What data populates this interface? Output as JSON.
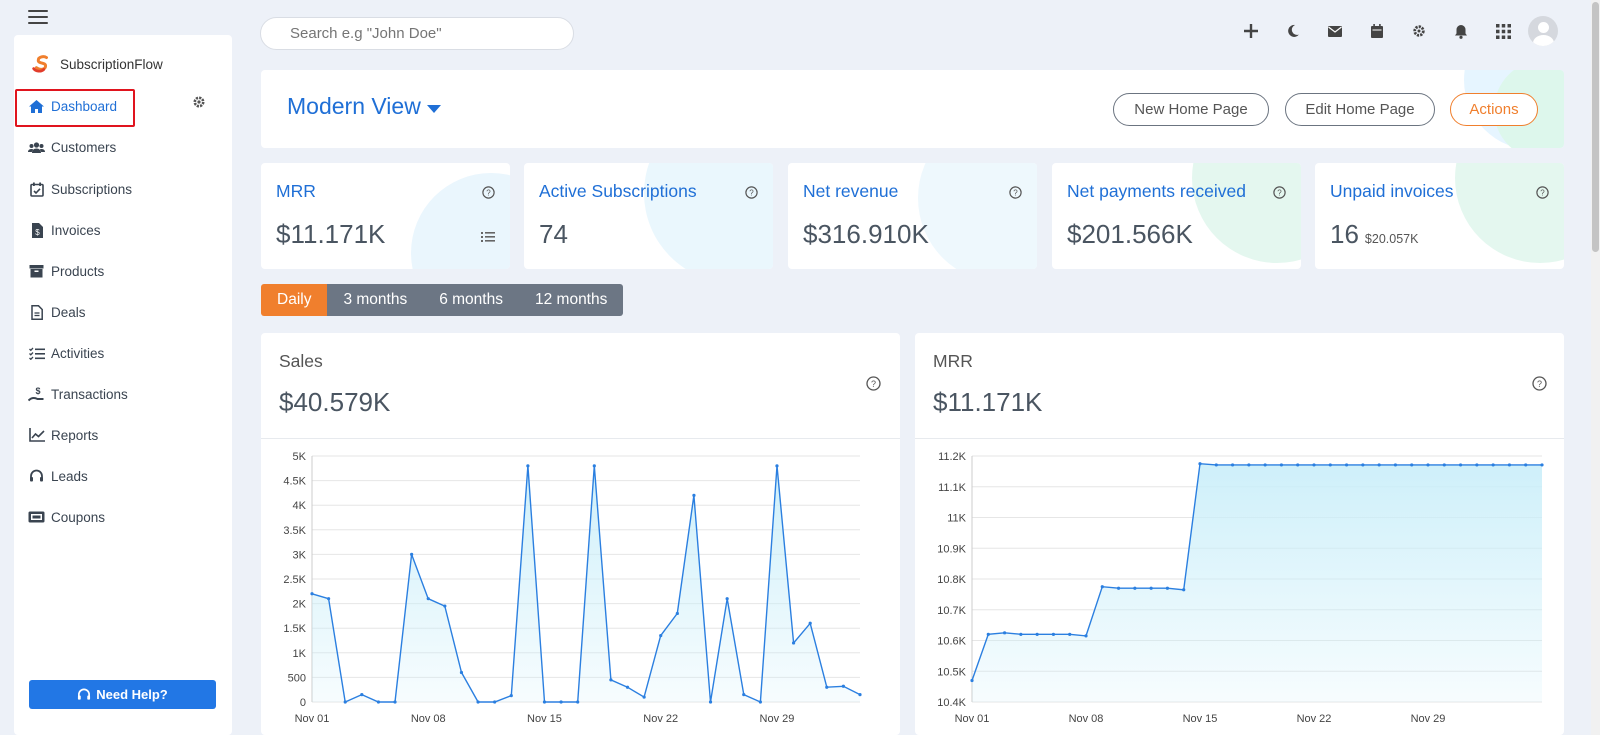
{
  "brand": {
    "name": "SubscriptionFlow"
  },
  "search": {
    "placeholder": "Search e.g \"John Doe\""
  },
  "sidebar": {
    "items": [
      {
        "label": "Dashboard",
        "icon": "home-icon",
        "active": true
      },
      {
        "label": "Customers",
        "icon": "users-icon"
      },
      {
        "label": "Subscriptions",
        "icon": "calendar-check-icon"
      },
      {
        "label": "Invoices",
        "icon": "invoice-icon"
      },
      {
        "label": "Products",
        "icon": "box-icon"
      },
      {
        "label": "Deals",
        "icon": "document-icon"
      },
      {
        "label": "Activities",
        "icon": "checklist-icon"
      },
      {
        "label": "Transactions",
        "icon": "hand-dollar-icon"
      },
      {
        "label": "Reports",
        "icon": "line-chart-icon"
      },
      {
        "label": "Leads",
        "icon": "headset-icon"
      },
      {
        "label": "Coupons",
        "icon": "ticket-icon"
      }
    ],
    "help_label": "Need Help?"
  },
  "header": {
    "view_title": "Modern View",
    "buttons": {
      "new_home": "New Home Page",
      "edit_home": "Edit Home Page",
      "actions": "Actions"
    }
  },
  "stats": [
    {
      "title": "MRR",
      "value": "$11.171K",
      "sub": ""
    },
    {
      "title": "Active Subscriptions",
      "value": "74",
      "sub": ""
    },
    {
      "title": "Net revenue",
      "value": "$316.910K",
      "sub": ""
    },
    {
      "title": "Net payments received",
      "value": "$201.566K",
      "sub": ""
    },
    {
      "title": "Unpaid invoices",
      "value": "16",
      "sub": "$20.057K"
    }
  ],
  "tabs": [
    {
      "label": "Daily",
      "active": true
    },
    {
      "label": "3 months"
    },
    {
      "label": "6 months"
    },
    {
      "label": "12 months"
    }
  ],
  "colors": {
    "accent": "#1f6fd6",
    "orange": "#f07f2d",
    "line": "#2b7fe0",
    "fill": "#c9eef9"
  },
  "cards": {
    "sales": {
      "label": "Sales",
      "value": "$40.579K"
    },
    "mrr": {
      "label": "MRR",
      "value": "$11.171K"
    }
  },
  "chart_data": [
    {
      "type": "area",
      "title": "Sales",
      "ylim": [
        0,
        5000
      ],
      "y_ticks": [
        "0",
        "500",
        "1K",
        "1.5K",
        "2K",
        "2.5K",
        "3K",
        "3.5K",
        "4K",
        "4.5K",
        "5K"
      ],
      "x_ticks": [
        "Nov 01",
        "Nov 08",
        "Nov 15",
        "Nov 22",
        "Nov 29"
      ],
      "values": [
        2200,
        2100,
        0,
        150,
        0,
        0,
        3000,
        2100,
        1950,
        600,
        0,
        0,
        130,
        4800,
        0,
        0,
        0,
        4800,
        450,
        300,
        100,
        1350,
        1800,
        4200,
        0,
        2100,
        150,
        0,
        4800,
        1200,
        1600,
        300,
        320,
        150
      ],
      "grid": true
    },
    {
      "type": "area",
      "title": "MRR",
      "ylim": [
        10400,
        11200
      ],
      "y_ticks": [
        "10.4K",
        "10.5K",
        "10.6K",
        "10.7K",
        "10.8K",
        "10.9K",
        "11K",
        "11.1K",
        "11.2K"
      ],
      "x_ticks": [
        "Nov 01",
        "Nov 08",
        "Nov 15",
        "Nov 22",
        "Nov 29"
      ],
      "values": [
        10470,
        10620,
        10625,
        10620,
        10620,
        10620,
        10620,
        10615,
        10775,
        10770,
        10770,
        10770,
        10770,
        10765,
        11175,
        11171,
        11171,
        11171,
        11171,
        11171,
        11171,
        11171,
        11171,
        11171,
        11171,
        11171,
        11171,
        11171,
        11171,
        11171,
        11171,
        11171,
        11171,
        11171,
        11171,
        11171
      ],
      "grid": true
    }
  ]
}
